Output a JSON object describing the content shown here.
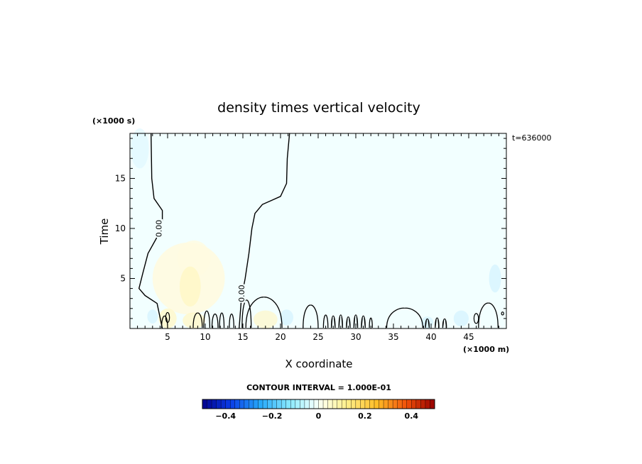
{
  "chart_data": {
    "type": "contour",
    "title": "density times vertical velocity",
    "xlabel": "X coordinate",
    "ylabel": "Time",
    "x_unit": "(×1000 m)",
    "y_unit": "(×1000 s)",
    "time_stamp": "t=636000",
    "xlim": [
      0,
      50
    ],
    "ylim": [
      0,
      19.5
    ],
    "x_ticks": [
      5,
      10,
      15,
      20,
      25,
      30,
      35,
      40,
      45
    ],
    "y_ticks": [
      5,
      10,
      15
    ],
    "contour_interval_text": "CONTOUR INTERVAL = 1.000E-01",
    "contour_labels": [
      {
        "text": "0.00",
        "x": 3.8,
        "y": 10.0
      },
      {
        "text": "0.00",
        "x": 14.8,
        "y": 3.5
      }
    ],
    "zero_contours": [
      [
        [
          2.8,
          19.5
        ],
        [
          2.9,
          15.0
        ],
        [
          3.2,
          13.0
        ],
        [
          4.3,
          11.8
        ],
        [
          4.3,
          10.8
        ],
        [
          3.5,
          9.0
        ],
        [
          2.4,
          7.5
        ],
        [
          1.7,
          5.5
        ],
        [
          1.2,
          4.0
        ],
        [
          2.0,
          3.3
        ],
        [
          3.6,
          2.5
        ],
        [
          4.3,
          0.0
        ]
      ],
      [
        [
          21.2,
          19.5
        ],
        [
          20.9,
          17.0
        ],
        [
          20.8,
          14.5
        ],
        [
          20.0,
          13.2
        ],
        [
          18.8,
          12.8
        ],
        [
          17.6,
          12.4
        ],
        [
          16.6,
          11.5
        ],
        [
          16.2,
          10.0
        ],
        [
          15.8,
          7.5
        ],
        [
          15.3,
          5.0
        ],
        [
          14.8,
          3.0
        ],
        [
          14.5,
          0.0
        ]
      ]
    ],
    "colorbar": {
      "min": -0.5,
      "max": 0.5,
      "tick_labels": [
        "−0.4",
        "−0.2",
        "0",
        "0.2",
        "0.4"
      ],
      "tick_values": [
        -0.4,
        -0.2,
        0,
        0.2,
        0.4
      ]
    },
    "field_colors": {
      "background": "#f2ffff",
      "positive_weak": "#fffbe0",
      "positive": "#fff7c8",
      "negative_weak": "#dcf6ff"
    },
    "grid": false
  }
}
